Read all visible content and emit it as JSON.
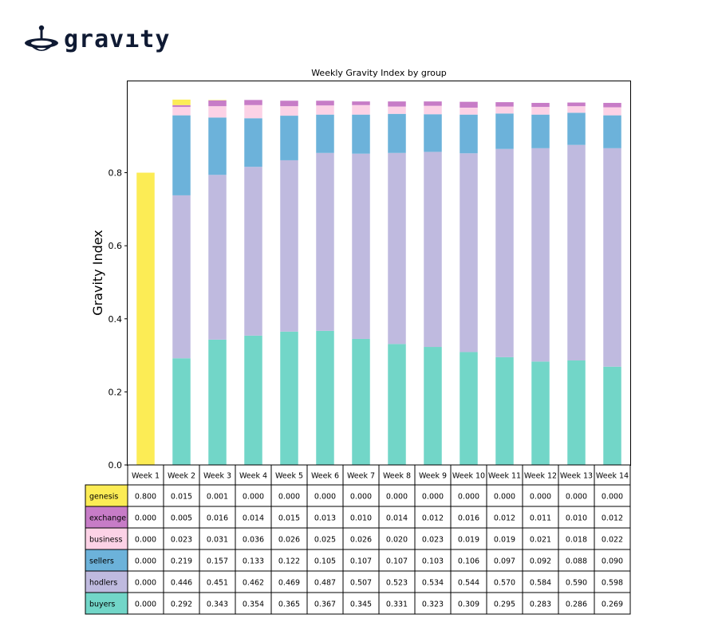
{
  "brand": {
    "name": "gravıty"
  },
  "chart_data": {
    "type": "bar",
    "stacked": true,
    "title": "Weekly Gravity Index by group",
    "xlabel": "",
    "ylabel": "Gravity Index",
    "ylim": [
      0,
      1.05
    ],
    "yticks": [
      "0.0",
      "0.2",
      "0.4",
      "0.6",
      "0.8"
    ],
    "grid": false,
    "categories": [
      "Week 1",
      "Week 2",
      "Week 3",
      "Week 4",
      "Week 5",
      "Week 6",
      "Week 7",
      "Week 8",
      "Week 9",
      "Week 10",
      "Week 11",
      "Week 12",
      "Week 13",
      "Week 14"
    ],
    "series": [
      {
        "name": "genesis",
        "color": "#fcec55",
        "values": [
          0.8,
          0.015,
          0.001,
          0.0,
          0.0,
          0.0,
          0.0,
          0.0,
          0.0,
          0.0,
          0.0,
          0.0,
          0.0,
          0.0
        ],
        "labels": [
          "0.800",
          "0.015",
          "0.001",
          "0.000",
          "0.000",
          "0.000",
          "0.000",
          "0.000",
          "0.000",
          "0.000",
          "0.000",
          "0.000",
          "0.000",
          "0.000"
        ]
      },
      {
        "name": "exchange",
        "color": "#c77cc7",
        "values": [
          0.0,
          0.005,
          0.016,
          0.014,
          0.015,
          0.013,
          0.01,
          0.014,
          0.012,
          0.016,
          0.012,
          0.011,
          0.01,
          0.012
        ],
        "labels": [
          "0.000",
          "0.005",
          "0.016",
          "0.014",
          "0.015",
          "0.013",
          "0.010",
          "0.014",
          "0.012",
          "0.016",
          "0.012",
          "0.011",
          "0.010",
          "0.012"
        ]
      },
      {
        "name": "business",
        "color": "#fcd2e6",
        "values": [
          0.0,
          0.023,
          0.031,
          0.036,
          0.026,
          0.025,
          0.026,
          0.02,
          0.023,
          0.019,
          0.019,
          0.021,
          0.018,
          0.022
        ],
        "labels": [
          "0.000",
          "0.023",
          "0.031",
          "0.036",
          "0.026",
          "0.025",
          "0.026",
          "0.020",
          "0.023",
          "0.019",
          "0.019",
          "0.021",
          "0.018",
          "0.022"
        ]
      },
      {
        "name": "sellers",
        "color": "#6cb2da",
        "values": [
          0.0,
          0.219,
          0.157,
          0.133,
          0.122,
          0.105,
          0.107,
          0.107,
          0.103,
          0.106,
          0.097,
          0.092,
          0.088,
          0.09
        ],
        "labels": [
          "0.000",
          "0.219",
          "0.157",
          "0.133",
          "0.122",
          "0.105",
          "0.107",
          "0.107",
          "0.103",
          "0.106",
          "0.097",
          "0.092",
          "0.088",
          "0.090"
        ]
      },
      {
        "name": "hodlers",
        "color": "#bfbadf",
        "values": [
          0.0,
          0.446,
          0.451,
          0.462,
          0.469,
          0.487,
          0.507,
          0.523,
          0.534,
          0.544,
          0.57,
          0.584,
          0.59,
          0.598
        ],
        "labels": [
          "0.000",
          "0.446",
          "0.451",
          "0.462",
          "0.469",
          "0.487",
          "0.507",
          "0.523",
          "0.534",
          "0.544",
          "0.570",
          "0.584",
          "0.590",
          "0.598"
        ]
      },
      {
        "name": "buyers",
        "color": "#72d6c8",
        "values": [
          0.0,
          0.292,
          0.343,
          0.354,
          0.365,
          0.367,
          0.345,
          0.331,
          0.323,
          0.309,
          0.295,
          0.283,
          0.286,
          0.269
        ],
        "labels": [
          "0.000",
          "0.292",
          "0.343",
          "0.354",
          "0.365",
          "0.367",
          "0.345",
          "0.331",
          "0.323",
          "0.309",
          "0.295",
          "0.283",
          "0.286",
          "0.269"
        ]
      }
    ]
  }
}
